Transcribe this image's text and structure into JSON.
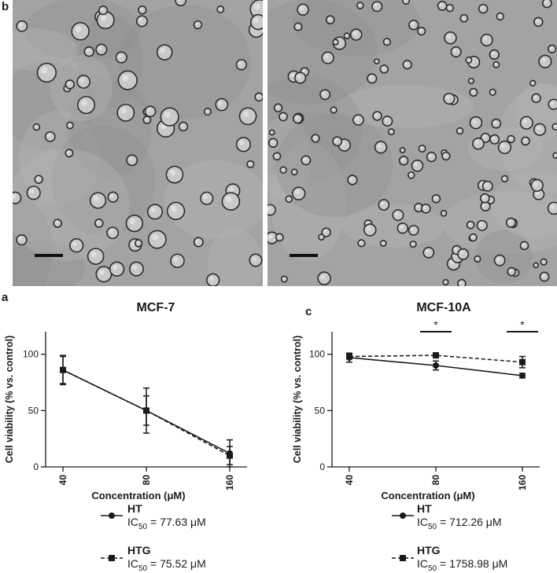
{
  "panels": {
    "top_label": "b",
    "left_label": "a",
    "right_label": "c"
  },
  "chart_data": [
    {
      "type": "line",
      "title": "MCF-7",
      "xlabel": "Concentration (μM)",
      "ylabel": "Cell viability (% vs. control)",
      "categories": [
        "40",
        "80",
        "160"
      ],
      "ylim": [
        0,
        120
      ],
      "yticks": [
        0,
        50,
        100
      ],
      "grid": false,
      "legend_position": "bottom",
      "series": [
        {
          "name": "HT",
          "marker": "circle",
          "dash": "solid",
          "values": [
            86,
            50,
            12
          ],
          "errors": [
            13,
            13,
            12
          ]
        },
        {
          "name": "HTG",
          "marker": "square",
          "dash": "dashed",
          "values": [
            86,
            50,
            10
          ],
          "errors": [
            12,
            20,
            8
          ]
        }
      ],
      "annotations": []
    },
    {
      "type": "line",
      "title": "MCF-10A",
      "xlabel": "Concentration (μM)",
      "ylabel": "Cell viability (% vs. control)",
      "categories": [
        "40",
        "80",
        "160"
      ],
      "ylim": [
        0,
        120
      ],
      "yticks": [
        0,
        50,
        100
      ],
      "grid": false,
      "legend_position": "bottom",
      "series": [
        {
          "name": "HT",
          "marker": "circle",
          "dash": "solid",
          "values": [
            97,
            90,
            81
          ],
          "errors": [
            4,
            4,
            2
          ]
        },
        {
          "name": "HTG",
          "marker": "square",
          "dash": "dashed",
          "values": [
            98,
            99,
            93
          ],
          "errors": [
            2,
            1,
            5
          ]
        }
      ],
      "annotations": [
        "*",
        "*"
      ]
    }
  ],
  "legends": [
    [
      {
        "name": "HT",
        "ic_prefix": "IC",
        "ic_sub": "50",
        "ic_value": "= 77.63 μM"
      },
      {
        "name": "HTG",
        "ic_prefix": "IC",
        "ic_sub": "50",
        "ic_value": "= 75.52 μM"
      }
    ],
    [
      {
        "name": "HT",
        "ic_prefix": "IC",
        "ic_sub": "50",
        "ic_value": "= 712.26 μM"
      },
      {
        "name": "HTG",
        "ic_prefix": "IC",
        "ic_sub": "50",
        "ic_value": "= 1758.98 μM"
      }
    ]
  ],
  "colors": {
    "ink": "#1a1a1a",
    "micro_bg": "#a3a3a3"
  }
}
